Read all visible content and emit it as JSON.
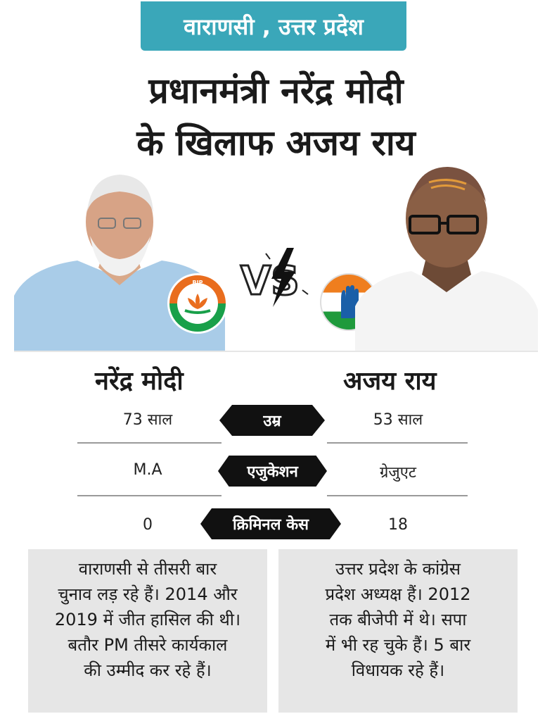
{
  "location": "वाराणसी , उत्तर प्रदेश",
  "headline": [
    "प्रधानमंत्री नरेंद्र मोदी",
    "के खिलाफ अजय राय"
  ],
  "vs_text": "VS",
  "bjp_logo_text": "BJP",
  "candidates": {
    "left": {
      "name": "नरेंद्र मोदी",
      "party": "BJP"
    },
    "right": {
      "name": "अजय राय",
      "party": "INC"
    }
  },
  "comparison": [
    {
      "label": "उम्र",
      "left": "73 साल",
      "right": "53 साल"
    },
    {
      "label": "एजुकेशन",
      "left": "M.A",
      "right": "ग्रेजुएट"
    },
    {
      "label": "क्रिमिनल केस",
      "left": "0",
      "right": "18"
    }
  ],
  "notes": {
    "left": [
      "वाराणसी से तीसरी बार",
      "चुनाव लड़ रहे हैं। 2014 और",
      "2019 में जीत हासिल की थी।",
      "बतौर PM तीसरे कार्यकाल",
      "की उम्मीद कर रहे हैं।"
    ],
    "right": [
      "उत्तर प्रदेश के कांग्रेस",
      "प्रदेश अध्यक्ष हैं। 2012",
      "तक बीजेपी में थे। सपा",
      "में भी रह चुके हैं। 5 बार",
      "विधायक रहे हैं।"
    ]
  },
  "colors": {
    "badge": "#3aa7b9",
    "pill": "#111111",
    "box": "#e6e6e6",
    "saffron": "#e96d1e",
    "green": "#19a04a"
  }
}
